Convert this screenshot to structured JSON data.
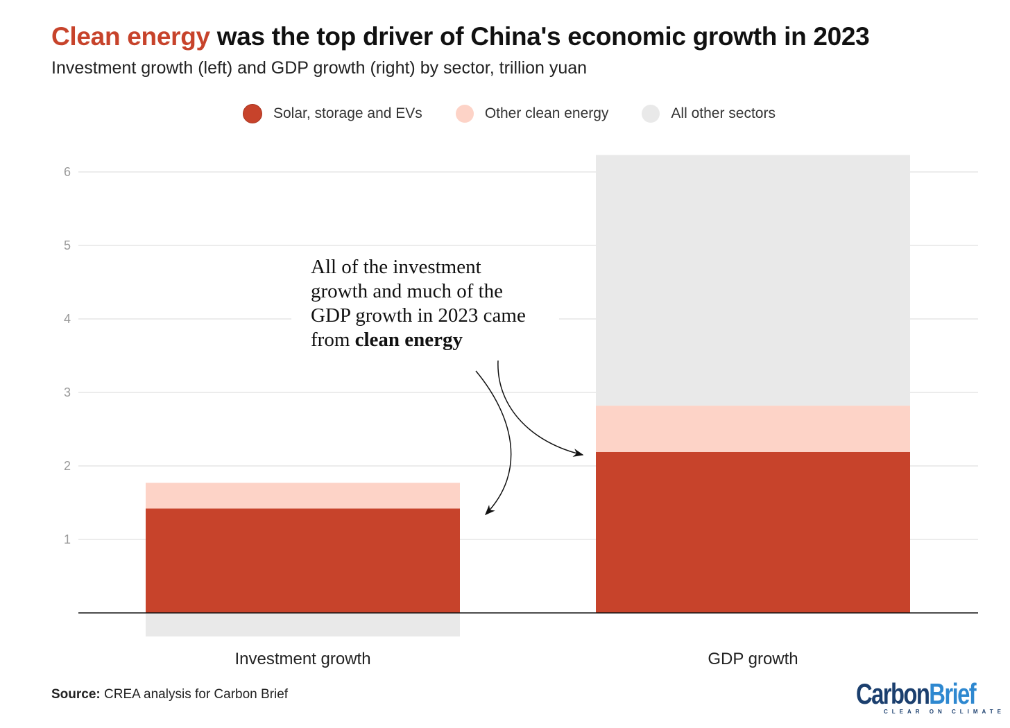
{
  "title": {
    "highlight": "Clean energy",
    "rest": " was the top driver of China's economic growth in 2023"
  },
  "subtitle": "Investment growth (left) and GDP growth (right) by sector, trillion yuan",
  "annotation": {
    "text": "All of the investment growth and much of the GDP growth in 2023 came from ",
    "bold": "clean energy"
  },
  "source": {
    "label": "Source:",
    "text": " CREA analysis for Carbon Brief"
  },
  "logo": {
    "part1": "Carbon",
    "part2": "Brief",
    "tagline": "CLEAR ON CLIMATE"
  },
  "chart_data": {
    "type": "bar",
    "stacked": true,
    "categories": [
      "Investment growth",
      "GDP growth"
    ],
    "series": [
      {
        "name": "Solar, storage and EVs",
        "color": "#c7432b",
        "values": [
          1.42,
          2.19
        ]
      },
      {
        "name": "Other clean energy",
        "color": "#fdd3c7",
        "values": [
          0.35,
          0.63
        ]
      },
      {
        "name": "All other sectors",
        "color": "#e9e9e9",
        "values": [
          -0.32,
          3.41
        ]
      }
    ],
    "yticks": [
      "1",
      "2",
      "3",
      "4",
      "5",
      "6"
    ],
    "ylim": [
      -0.35,
      6.5
    ],
    "grid": true,
    "legend": "top-center",
    "unit": "trillion yuan"
  }
}
